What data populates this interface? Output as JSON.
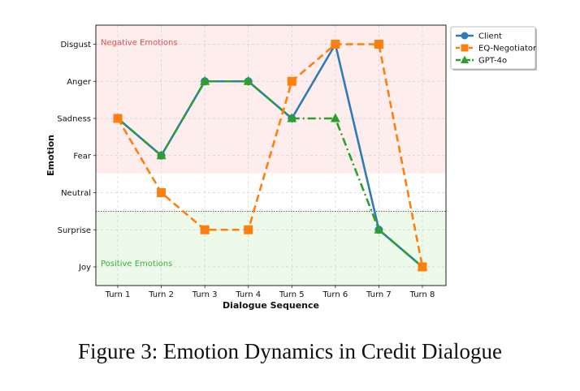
{
  "chart_data": {
    "type": "line",
    "xlabel": "Dialogue Sequence",
    "ylabel": "Emotion",
    "categories": [
      "Turn 1",
      "Turn 2",
      "Turn 3",
      "Turn 4",
      "Turn 5",
      "Turn 6",
      "Turn 7",
      "Turn 8"
    ],
    "y_categories": [
      "Joy",
      "Surprise",
      "Neutral",
      "Fear",
      "Sadness",
      "Anger",
      "Disgust"
    ],
    "series": [
      {
        "name": "Client",
        "color": "#2f7bb6",
        "marker": "circle",
        "linestyle": "solid",
        "values": [
          "Sadness",
          "Fear",
          "Anger",
          "Anger",
          "Sadness",
          "Disgust",
          "Surprise",
          "Joy"
        ]
      },
      {
        "name": "EQ-Negotiator",
        "color": "#ff7f0e",
        "marker": "square",
        "linestyle": "dashed",
        "values": [
          "Sadness",
          "Neutral",
          "Surprise",
          "Surprise",
          "Anger",
          "Disgust",
          "Disgust",
          "Joy"
        ]
      },
      {
        "name": "GPT-4o",
        "color": "#2ca02c",
        "marker": "triangle",
        "linestyle": "dashdot",
        "values": [
          "Sadness",
          "Fear",
          "Anger",
          "Anger",
          "Sadness",
          "Sadness",
          "Surprise",
          "Joy"
        ]
      }
    ],
    "regions": [
      {
        "label": "Negative Emotions",
        "color": "#d9534f",
        "fill": "#fdeeed"
      },
      {
        "label": "Positive Emotions",
        "color": "#3cb043",
        "fill": "#edfaea"
      }
    ],
    "grid": true,
    "legend": "top-right outside"
  },
  "caption": "Figure 3: Emotion Dynamics in Credit Dialogue"
}
